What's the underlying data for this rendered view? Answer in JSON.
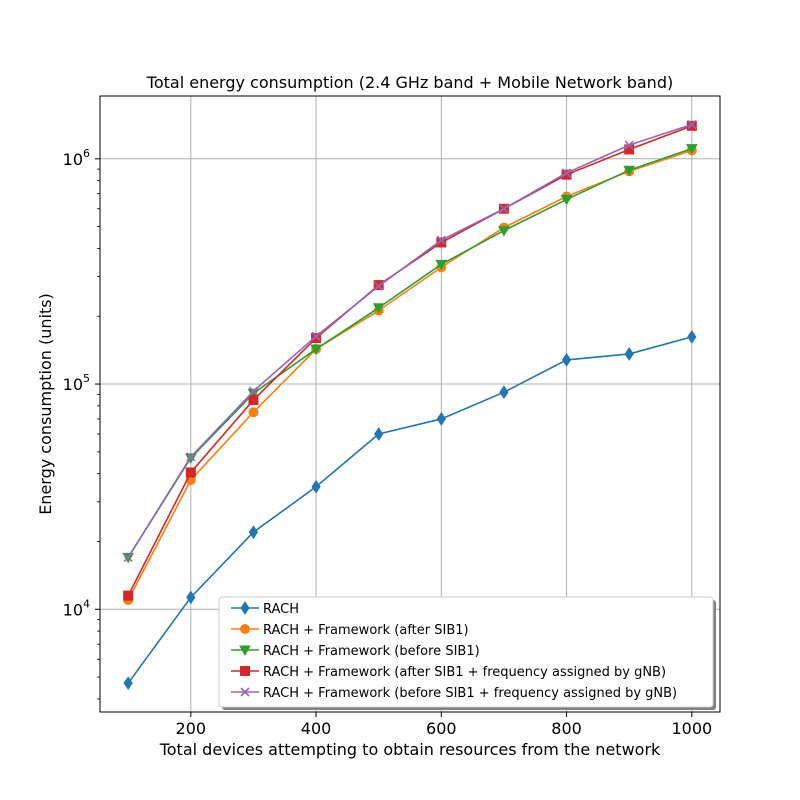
{
  "chart_data": {
    "type": "line",
    "title": "Total energy consumption (2.4 GHz band + Mobile Network band)",
    "xlabel": "Total devices attempting to obtain resources from the network",
    "ylabel": "Energy consumption (units)",
    "x_scale": "linear",
    "y_scale": "log",
    "xlim": [
      55,
      1045
    ],
    "ylim": [
      3500,
      1900000
    ],
    "x_ticks": [
      200,
      400,
      600,
      800,
      1000
    ],
    "x_tick_labels": [
      "200",
      "400",
      "600",
      "800",
      "1000"
    ],
    "y_ticks": [
      10000,
      100000,
      1000000
    ],
    "y_tick_labels": [
      {
        "base": "10",
        "exp": "4"
      },
      {
        "base": "10",
        "exp": "5"
      },
      {
        "base": "10",
        "exp": "6"
      }
    ],
    "grid": true,
    "legend_position": "lower-right",
    "x": [
      100,
      200,
      300,
      400,
      500,
      600,
      700,
      800,
      900,
      1000
    ],
    "series": [
      {
        "name": "RACH",
        "color": "#1f77b4",
        "marker": "diamond",
        "values": [
          4700,
          11300,
          22000,
          35000,
          60000,
          70000,
          92000,
          128000,
          136000,
          162000
        ]
      },
      {
        "name": "RACH + Framework (after SIB1)",
        "color": "#ff7f0e",
        "marker": "circle",
        "values": [
          11000,
          37500,
          75000,
          143000,
          212000,
          330000,
          495000,
          680000,
          880000,
          1090000
        ]
      },
      {
        "name": "RACH + Framework (before SIB1)",
        "color": "#2ca02c",
        "marker": "triangle-down",
        "values": [
          17000,
          47000,
          91000,
          143000,
          218000,
          340000,
          480000,
          660000,
          890000,
          1110000
        ]
      },
      {
        "name": "RACH + Framework (after SIB1 + frequency assigned by gNB)",
        "color": "#d62728",
        "marker": "square",
        "values": [
          11500,
          40500,
          85000,
          160000,
          275000,
          425000,
          600000,
          850000,
          1100000,
          1400000
        ]
      },
      {
        "name": "RACH + Framework (before SIB1 + frequency assigned by gNB)",
        "color": "#9467bd",
        "marker": "x",
        "values": [
          17000,
          47500,
          93000,
          163000,
          272000,
          435000,
          600000,
          865000,
          1150000,
          1420000
        ]
      }
    ]
  }
}
